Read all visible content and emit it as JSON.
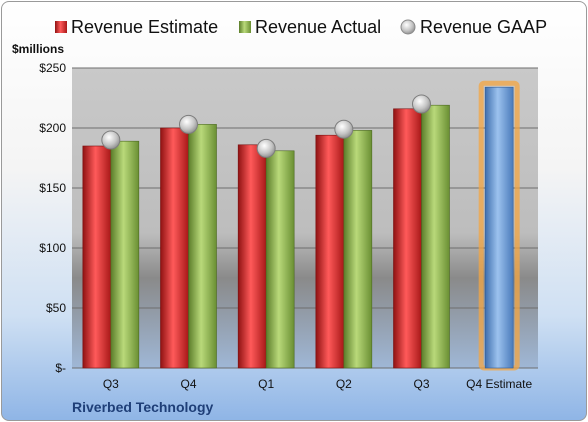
{
  "chart_data": {
    "type": "bar",
    "company": "Riverbed Technology",
    "unit_label": "$millions",
    "categories": [
      "Q3",
      "Q4",
      "Q1",
      "Q2",
      "Q3",
      "Q4 Estimate"
    ],
    "series": [
      {
        "name": "Revenue Estimate",
        "type": "bar",
        "color": "#d42a2a",
        "values": [
          185,
          200,
          186,
          194,
          216,
          null
        ]
      },
      {
        "name": "Revenue Actual",
        "type": "bar",
        "color": "#8db34a",
        "values": [
          189,
          203,
          181,
          198,
          219,
          null
        ]
      },
      {
        "name": "Revenue GAAP",
        "type": "marker",
        "color": "#b8b8b8",
        "values": [
          190,
          203,
          183,
          199,
          220,
          null
        ]
      },
      {
        "name": "Q4 Estimate",
        "type": "bar",
        "color": "#6f9fd8",
        "highlight": "#f4a641",
        "values": [
          null,
          null,
          null,
          null,
          null,
          234
        ]
      }
    ],
    "y_ticks": [
      {
        "value": 0,
        "label": "$-"
      },
      {
        "value": 50,
        "label": "$50"
      },
      {
        "value": 100,
        "label": "$100"
      },
      {
        "value": 150,
        "label": "$150"
      },
      {
        "value": 200,
        "label": "$200"
      },
      {
        "value": 250,
        "label": "$250"
      }
    ],
    "ylim": [
      0,
      250
    ],
    "grid": true,
    "legend_position": "top"
  }
}
